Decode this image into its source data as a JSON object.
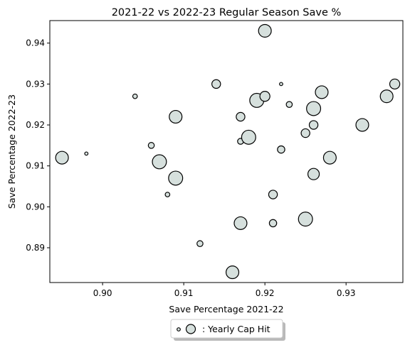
{
  "chart_data": {
    "type": "scatter",
    "title": "2021-22 vs 2022-23 Regular Season Save %",
    "xlabel": "Save Percentage 2021-22",
    "ylabel": "Save Percentage 2022-23",
    "xlim": [
      0.8935,
      0.937
    ],
    "ylim": [
      0.8815,
      0.9455
    ],
    "xticks": [
      0.9,
      0.91,
      0.92,
      0.93
    ],
    "xtick_labels": [
      "0.90",
      "0.91",
      "0.92",
      "0.93"
    ],
    "yticks": [
      0.89,
      0.9,
      0.91,
      0.92,
      0.93,
      0.94
    ],
    "ytick_labels": [
      "0.89",
      "0.90",
      "0.91",
      "0.92",
      "0.93",
      "0.94"
    ],
    "grid": false,
    "legend_position": "bottom-center, below plot",
    "legend_label": ": Yearly Cap Hit",
    "marker_face_color": "#d6e0dd",
    "marker_edge_color": "#000000",
    "size_note": "marker radius encodes relative yearly cap hit (1 = smallest, 9 = largest)",
    "points": [
      {
        "x": 0.895,
        "y": 0.912,
        "size": 8
      },
      {
        "x": 0.898,
        "y": 0.913,
        "size": 1
      },
      {
        "x": 0.904,
        "y": 0.927,
        "size": 2
      },
      {
        "x": 0.906,
        "y": 0.915,
        "size": 3
      },
      {
        "x": 0.907,
        "y": 0.911,
        "size": 9
      },
      {
        "x": 0.908,
        "y": 0.903,
        "size": 2
      },
      {
        "x": 0.909,
        "y": 0.922,
        "size": 8
      },
      {
        "x": 0.909,
        "y": 0.907,
        "size": 9
      },
      {
        "x": 0.912,
        "y": 0.891,
        "size": 3
      },
      {
        "x": 0.914,
        "y": 0.93,
        "size": 5
      },
      {
        "x": 0.916,
        "y": 0.884,
        "size": 8
      },
      {
        "x": 0.917,
        "y": 0.896,
        "size": 8
      },
      {
        "x": 0.917,
        "y": 0.922,
        "size": 5
      },
      {
        "x": 0.917,
        "y": 0.916,
        "size": 3
      },
      {
        "x": 0.918,
        "y": 0.917,
        "size": 9
      },
      {
        "x": 0.919,
        "y": 0.926,
        "size": 9
      },
      {
        "x": 0.92,
        "y": 0.943,
        "size": 8
      },
      {
        "x": 0.92,
        "y": 0.927,
        "size": 6
      },
      {
        "x": 0.921,
        "y": 0.903,
        "size": 5
      },
      {
        "x": 0.921,
        "y": 0.896,
        "size": 4
      },
      {
        "x": 0.922,
        "y": 0.93,
        "size": 1
      },
      {
        "x": 0.922,
        "y": 0.914,
        "size": 4
      },
      {
        "x": 0.923,
        "y": 0.925,
        "size": 3
      },
      {
        "x": 0.925,
        "y": 0.918,
        "size": 5
      },
      {
        "x": 0.925,
        "y": 0.897,
        "size": 9
      },
      {
        "x": 0.926,
        "y": 0.924,
        "size": 9
      },
      {
        "x": 0.926,
        "y": 0.92,
        "size": 5
      },
      {
        "x": 0.926,
        "y": 0.908,
        "size": 7
      },
      {
        "x": 0.927,
        "y": 0.928,
        "size": 8
      },
      {
        "x": 0.928,
        "y": 0.912,
        "size": 8
      },
      {
        "x": 0.932,
        "y": 0.92,
        "size": 8
      },
      {
        "x": 0.935,
        "y": 0.927,
        "size": 8
      },
      {
        "x": 0.936,
        "y": 0.93,
        "size": 6
      }
    ]
  }
}
